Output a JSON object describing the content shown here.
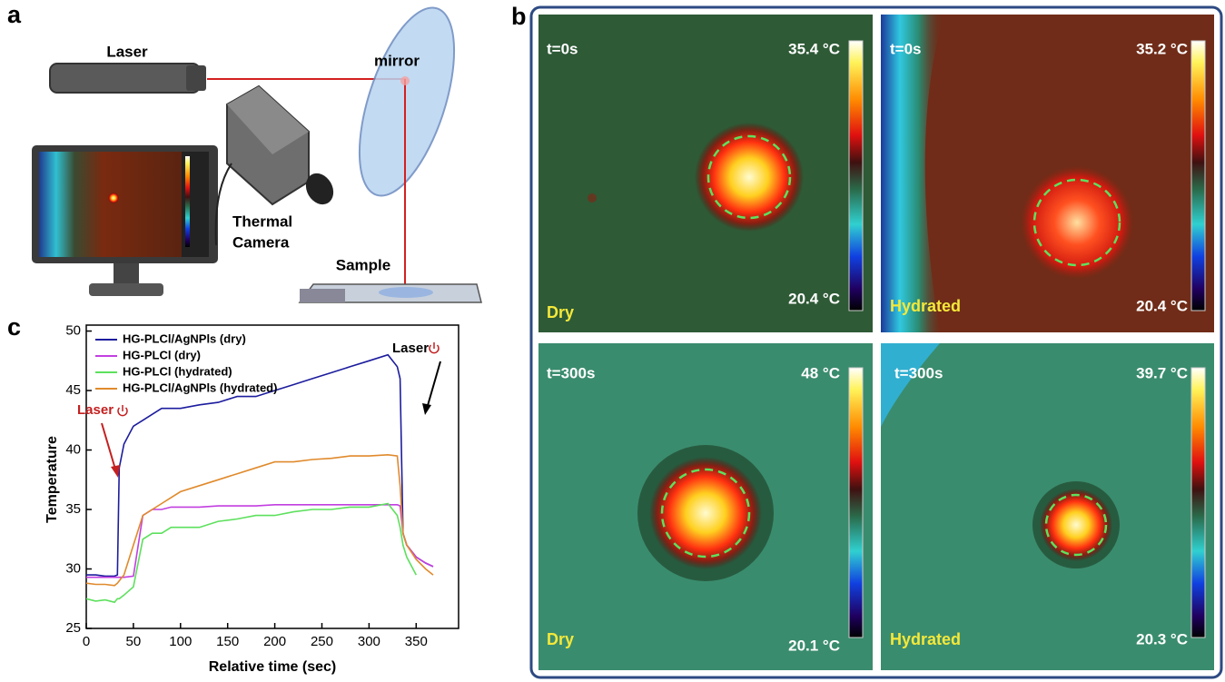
{
  "panels": {
    "a": "a",
    "b": "b",
    "c": "c"
  },
  "setup": {
    "laser": "Laser",
    "mirror": "mirror",
    "camera_line1": "Thermal",
    "camera_line2": "Camera",
    "sample": "Sample"
  },
  "thermal_images": [
    {
      "time": "t=0s",
      "max": "35.4 °C",
      "min": "20.4 °C",
      "condition": "Dry"
    },
    {
      "time": "t=0s",
      "max": "35.2 °C",
      "min": "20.4 °C",
      "condition": "Hydrated"
    },
    {
      "time": "t=300s",
      "max": "48 °C",
      "min": "20.1 °C",
      "condition": "Dry"
    },
    {
      "time": "t=300s",
      "max": "39.7 °C",
      "min": "20.3 °C",
      "condition": "Hydrated"
    }
  ],
  "chart_data": {
    "type": "line",
    "x_label": "Relative time (sec)",
    "y_label": "Temperature",
    "annotations": [
      "Laser",
      "Laser"
    ],
    "x": [
      0,
      10,
      20,
      30,
      33,
      35,
      40,
      50,
      60,
      70,
      80,
      90,
      100,
      120,
      140,
      160,
      180,
      200,
      220,
      240,
      260,
      280,
      300,
      320,
      330,
      333,
      336,
      340,
      350,
      360,
      368
    ],
    "series": [
      {
        "name": "HG-PLCl/AgNPls (dry)",
        "color": "#1c1c9e",
        "values": [
          29.5,
          29.5,
          29.4,
          29.4,
          29.5,
          38.5,
          40.5,
          42,
          42.5,
          43,
          43.5,
          43.5,
          43.5,
          43.8,
          44,
          44.5,
          44.5,
          45,
          45.5,
          46,
          46.5,
          47,
          47.5,
          48,
          47,
          46,
          33,
          32,
          31,
          30.5,
          30.2
        ]
      },
      {
        "name": "HG-PLCl (dry)",
        "color": "#c23fe0",
        "values": [
          29.3,
          29.3,
          29.3,
          29.3,
          29.3,
          29.3,
          29.3,
          29.4,
          34.5,
          35,
          35,
          35.2,
          35.2,
          35.2,
          35.3,
          35.3,
          35.3,
          35.4,
          35.4,
          35.4,
          35.4,
          35.4,
          35.4,
          35.4,
          35.4,
          35.3,
          33,
          32,
          31,
          30.5,
          30.2
        ]
      },
      {
        "name": "HG-PLCl (hydrated)",
        "color": "#5de05d",
        "values": [
          27.5,
          27.3,
          27.4,
          27.2,
          27.5,
          27.5,
          27.8,
          28.5,
          32.5,
          33,
          33,
          33.5,
          33.5,
          33.5,
          34,
          34.2,
          34.5,
          34.5,
          34.8,
          35,
          35,
          35.2,
          35.2,
          35.5,
          34.5,
          33.5,
          32,
          31,
          29.5,
          null,
          null
        ]
      },
      {
        "name": "HG-PLCl/AgNPls (hydrated)",
        "color": "#e08a2c",
        "values": [
          28.8,
          28.7,
          28.7,
          28.6,
          28.8,
          29,
          29.5,
          32,
          34.5,
          35,
          35.5,
          36,
          36.5,
          37,
          37.5,
          38,
          38.5,
          39,
          39,
          39.2,
          39.3,
          39.5,
          39.5,
          39.6,
          39.5,
          37,
          33,
          32,
          30.8,
          30,
          29.5
        ]
      }
    ],
    "xlim": [
      0,
      395
    ],
    "xticks": [
      0,
      50,
      100,
      150,
      200,
      250,
      300,
      350
    ],
    "ylim": [
      25,
      50.5
    ],
    "yticks": [
      25,
      30,
      35,
      40,
      45,
      50
    ],
    "legend": "upper left"
  }
}
